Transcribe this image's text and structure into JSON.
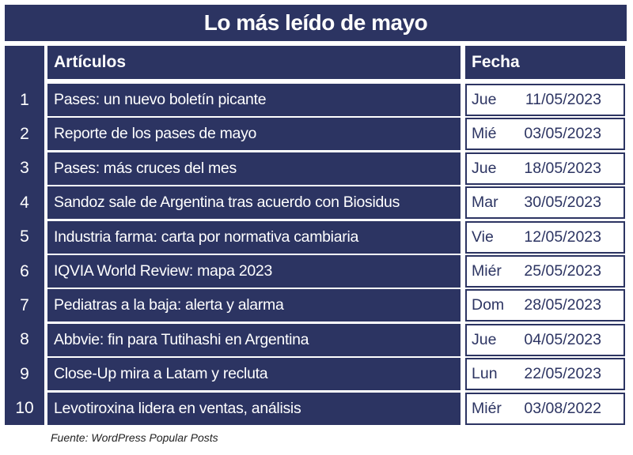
{
  "title": "Lo más leído de mayo",
  "table": {
    "header": {
      "article": "Artículos",
      "date": "Fecha"
    },
    "rows": [
      {
        "number": "1",
        "article": "Pases: un nuevo boletín picante",
        "day": "Jue",
        "date": "11/05/2023"
      },
      {
        "number": "2",
        "article": "Reporte de los pases de mayo",
        "day": "Mié",
        "date": "03/05/2023"
      },
      {
        "number": "3",
        "article": "Pases: más cruces del mes",
        "day": "Jue",
        "date": "18/05/2023"
      },
      {
        "number": "4",
        "article": "Sandoz sale de Argentina tras acuerdo con Biosidus",
        "day": "Mar",
        "date": "30/05/2023"
      },
      {
        "number": "5",
        "article": "Industria farma: carta por normativa cambiaria",
        "day": "Vie",
        "date": "12/05/2023"
      },
      {
        "number": "6",
        "article": "IQVIA World Review: mapa 2023",
        "day": "Miér",
        "date": "25/05/2023"
      },
      {
        "number": "7",
        "article": "Pediatras a la baja: alerta y alarma",
        "day": "Dom",
        "date": "28/05/2023"
      },
      {
        "number": "8",
        "article": "Abbvie: fin para Tutihashi en Argentina",
        "day": "Jue",
        "date": "04/05/2023"
      },
      {
        "number": "9",
        "article": "Close-Up mira a Latam y recluta",
        "day": "Lun",
        "date": "22/05/2023"
      },
      {
        "number": "10",
        "article": "Levotiroxina lidera en ventas, análisis",
        "day": "Miér",
        "date": "03/08/2022"
      }
    ]
  },
  "source": "Fuente: WordPress Popular Posts"
}
